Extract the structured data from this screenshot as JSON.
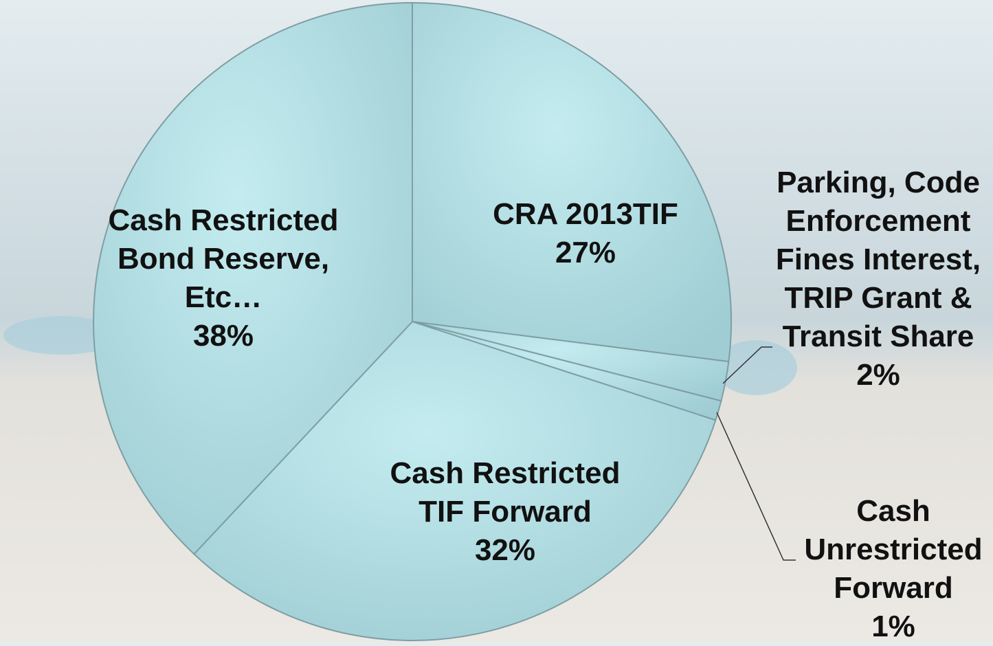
{
  "chart_data": {
    "type": "pie",
    "categories": [
      "CRA 2013TIF",
      "Parking, Code Enforcement Fines Interest, TRIP Grant & Transit Share",
      "Cash Unrestricted Forward",
      "Cash Restricted TIF Forward",
      "Cash Restricted Bond Reserve, Etc…"
    ],
    "values": [
      27,
      2,
      1,
      32,
      38
    ],
    "value_labels": [
      "27%",
      "2%",
      "1%",
      "32%",
      "38%"
    ],
    "color": "#b4e2e8"
  }
}
